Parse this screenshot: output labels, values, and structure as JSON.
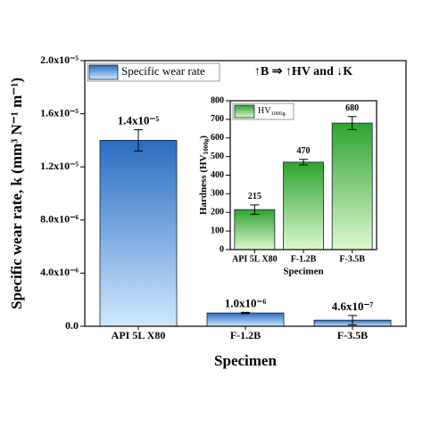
{
  "chart_data": [
    {
      "type": "bar",
      "categories": [
        "API 5L X80",
        "F-1.2B",
        "F-3.5B"
      ],
      "series": [
        {
          "name": "Specific wear rate",
          "color": "#2a6cc0",
          "values": [
            1.4e-05,
            1e-06,
            4.6e-07
          ],
          "errors": [
            8e-07,
            5e-08,
            3.5e-07
          ],
          "value_labels": [
            "1.4x10⁻⁵",
            "1.0x10⁻⁶",
            "4.6x10⁻⁷"
          ]
        }
      ],
      "ylim": [
        0,
        2e-05
      ],
      "yticks": [
        {
          "value": 0,
          "label": "0.0"
        },
        {
          "value": 4e-06,
          "label": "4.0x10⁻⁶"
        },
        {
          "value": 8e-06,
          "label": "8.0x10⁻⁶"
        },
        {
          "value": 1.2e-05,
          "label": "1.2x10⁻⁵"
        },
        {
          "value": 1.6e-05,
          "label": "1.6x10⁻⁵"
        },
        {
          "value": 2e-05,
          "label": "2.0x10⁻⁵"
        }
      ],
      "x_label": "Specimen",
      "y_label": "Specific wear rate, k (mm³ N⁻¹ m⁻¹)",
      "annotation": "↑B ⇒ ↑HV and ↓K",
      "legend": "upper left"
    },
    {
      "type": "bar",
      "categories": [
        "API 5L X80",
        "F-1.2B",
        "F-3.5B"
      ],
      "series": [
        {
          "name": "HV",
          "name_subscript": "1000g",
          "color": "#2fa32f",
          "values": [
            215,
            470,
            680
          ],
          "errors": [
            25,
            15,
            35
          ]
        }
      ],
      "ylim": [
        0,
        800
      ],
      "yticks": [
        0,
        100,
        200,
        300,
        400,
        500,
        600,
        700,
        800
      ],
      "x_label": "Specimen",
      "y_label": "Hardness (HV",
      "y_label_subscript": "1000g",
      "y_label_end": ")",
      "legend": "upper left"
    }
  ]
}
